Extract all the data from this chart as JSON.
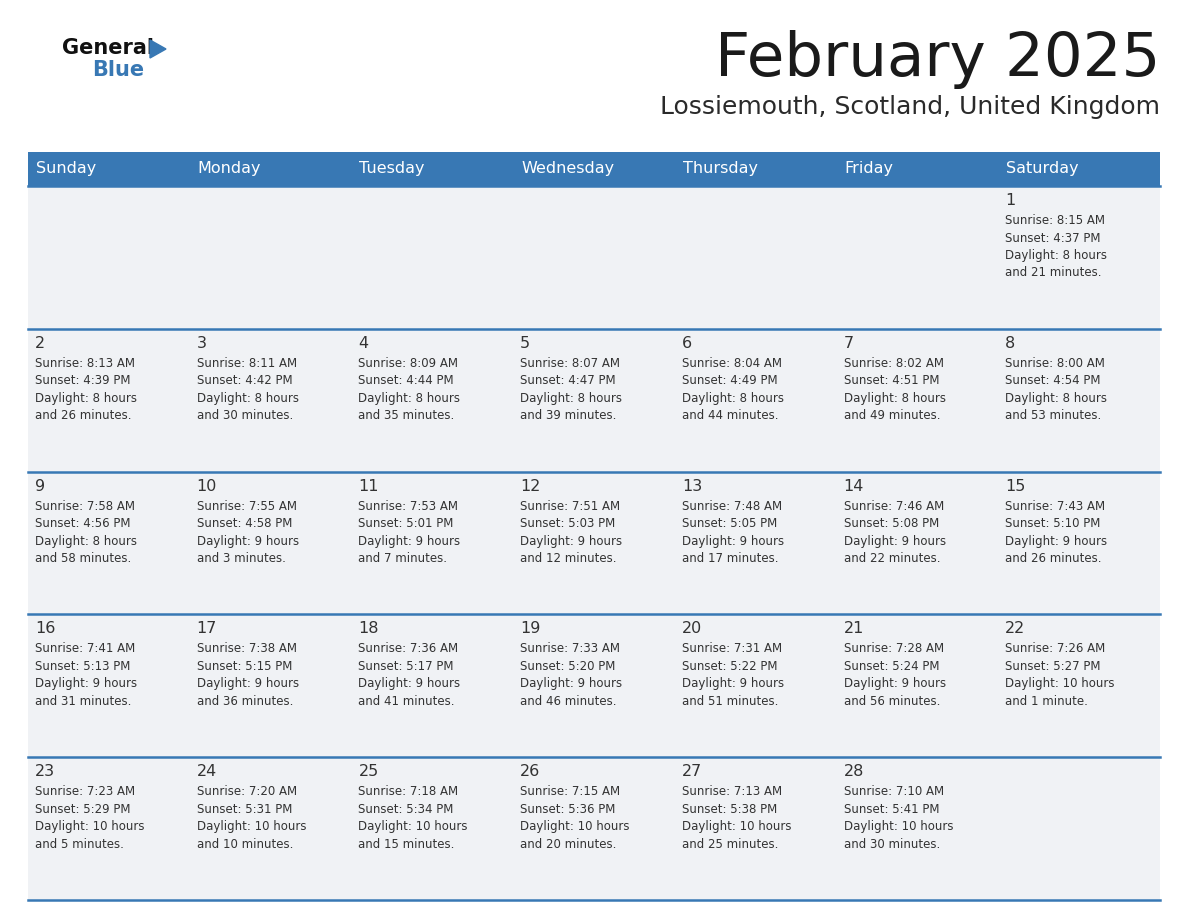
{
  "title": "February 2025",
  "subtitle": "Lossiemouth, Scotland, United Kingdom",
  "header_color": "#3878b4",
  "header_text_color": "#ffffff",
  "day_names": [
    "Sunday",
    "Monday",
    "Tuesday",
    "Wednesday",
    "Thursday",
    "Friday",
    "Saturday"
  ],
  "bg_color": "#ffffff",
  "cell_bg": "#f0f2f5",
  "row_line_color": "#3878b4",
  "text_color": "#333333",
  "days": [
    {
      "day": 1,
      "col": 6,
      "row": 0,
      "sunrise": "8:15 AM",
      "sunset": "4:37 PM",
      "daylight": "8 hours and 21 minutes"
    },
    {
      "day": 2,
      "col": 0,
      "row": 1,
      "sunrise": "8:13 AM",
      "sunset": "4:39 PM",
      "daylight": "8 hours and 26 minutes"
    },
    {
      "day": 3,
      "col": 1,
      "row": 1,
      "sunrise": "8:11 AM",
      "sunset": "4:42 PM",
      "daylight": "8 hours and 30 minutes"
    },
    {
      "day": 4,
      "col": 2,
      "row": 1,
      "sunrise": "8:09 AM",
      "sunset": "4:44 PM",
      "daylight": "8 hours and 35 minutes"
    },
    {
      "day": 5,
      "col": 3,
      "row": 1,
      "sunrise": "8:07 AM",
      "sunset": "4:47 PM",
      "daylight": "8 hours and 39 minutes"
    },
    {
      "day": 6,
      "col": 4,
      "row": 1,
      "sunrise": "8:04 AM",
      "sunset": "4:49 PM",
      "daylight": "8 hours and 44 minutes"
    },
    {
      "day": 7,
      "col": 5,
      "row": 1,
      "sunrise": "8:02 AM",
      "sunset": "4:51 PM",
      "daylight": "8 hours and 49 minutes"
    },
    {
      "day": 8,
      "col": 6,
      "row": 1,
      "sunrise": "8:00 AM",
      "sunset": "4:54 PM",
      "daylight": "8 hours and 53 minutes"
    },
    {
      "day": 9,
      "col": 0,
      "row": 2,
      "sunrise": "7:58 AM",
      "sunset": "4:56 PM",
      "daylight": "8 hours and 58 minutes"
    },
    {
      "day": 10,
      "col": 1,
      "row": 2,
      "sunrise": "7:55 AM",
      "sunset": "4:58 PM",
      "daylight": "9 hours and 3 minutes"
    },
    {
      "day": 11,
      "col": 2,
      "row": 2,
      "sunrise": "7:53 AM",
      "sunset": "5:01 PM",
      "daylight": "9 hours and 7 minutes"
    },
    {
      "day": 12,
      "col": 3,
      "row": 2,
      "sunrise": "7:51 AM",
      "sunset": "5:03 PM",
      "daylight": "9 hours and 12 minutes"
    },
    {
      "day": 13,
      "col": 4,
      "row": 2,
      "sunrise": "7:48 AM",
      "sunset": "5:05 PM",
      "daylight": "9 hours and 17 minutes"
    },
    {
      "day": 14,
      "col": 5,
      "row": 2,
      "sunrise": "7:46 AM",
      "sunset": "5:08 PM",
      "daylight": "9 hours and 22 minutes"
    },
    {
      "day": 15,
      "col": 6,
      "row": 2,
      "sunrise": "7:43 AM",
      "sunset": "5:10 PM",
      "daylight": "9 hours and 26 minutes"
    },
    {
      "day": 16,
      "col": 0,
      "row": 3,
      "sunrise": "7:41 AM",
      "sunset": "5:13 PM",
      "daylight": "9 hours and 31 minutes"
    },
    {
      "day": 17,
      "col": 1,
      "row": 3,
      "sunrise": "7:38 AM",
      "sunset": "5:15 PM",
      "daylight": "9 hours and 36 minutes"
    },
    {
      "day": 18,
      "col": 2,
      "row": 3,
      "sunrise": "7:36 AM",
      "sunset": "5:17 PM",
      "daylight": "9 hours and 41 minutes"
    },
    {
      "day": 19,
      "col": 3,
      "row": 3,
      "sunrise": "7:33 AM",
      "sunset": "5:20 PM",
      "daylight": "9 hours and 46 minutes"
    },
    {
      "day": 20,
      "col": 4,
      "row": 3,
      "sunrise": "7:31 AM",
      "sunset": "5:22 PM",
      "daylight": "9 hours and 51 minutes"
    },
    {
      "day": 21,
      "col": 5,
      "row": 3,
      "sunrise": "7:28 AM",
      "sunset": "5:24 PM",
      "daylight": "9 hours and 56 minutes"
    },
    {
      "day": 22,
      "col": 6,
      "row": 3,
      "sunrise": "7:26 AM",
      "sunset": "5:27 PM",
      "daylight": "10 hours and 1 minute"
    },
    {
      "day": 23,
      "col": 0,
      "row": 4,
      "sunrise": "7:23 AM",
      "sunset": "5:29 PM",
      "daylight": "10 hours and 5 minutes"
    },
    {
      "day": 24,
      "col": 1,
      "row": 4,
      "sunrise": "7:20 AM",
      "sunset": "5:31 PM",
      "daylight": "10 hours and 10 minutes"
    },
    {
      "day": 25,
      "col": 2,
      "row": 4,
      "sunrise": "7:18 AM",
      "sunset": "5:34 PM",
      "daylight": "10 hours and 15 minutes"
    },
    {
      "day": 26,
      "col": 3,
      "row": 4,
      "sunrise": "7:15 AM",
      "sunset": "5:36 PM",
      "daylight": "10 hours and 20 minutes"
    },
    {
      "day": 27,
      "col": 4,
      "row": 4,
      "sunrise": "7:13 AM",
      "sunset": "5:38 PM",
      "daylight": "10 hours and 25 minutes"
    },
    {
      "day": 28,
      "col": 5,
      "row": 4,
      "sunrise": "7:10 AM",
      "sunset": "5:41 PM",
      "daylight": "10 hours and 30 minutes"
    }
  ],
  "num_rows": 5,
  "num_cols": 7
}
